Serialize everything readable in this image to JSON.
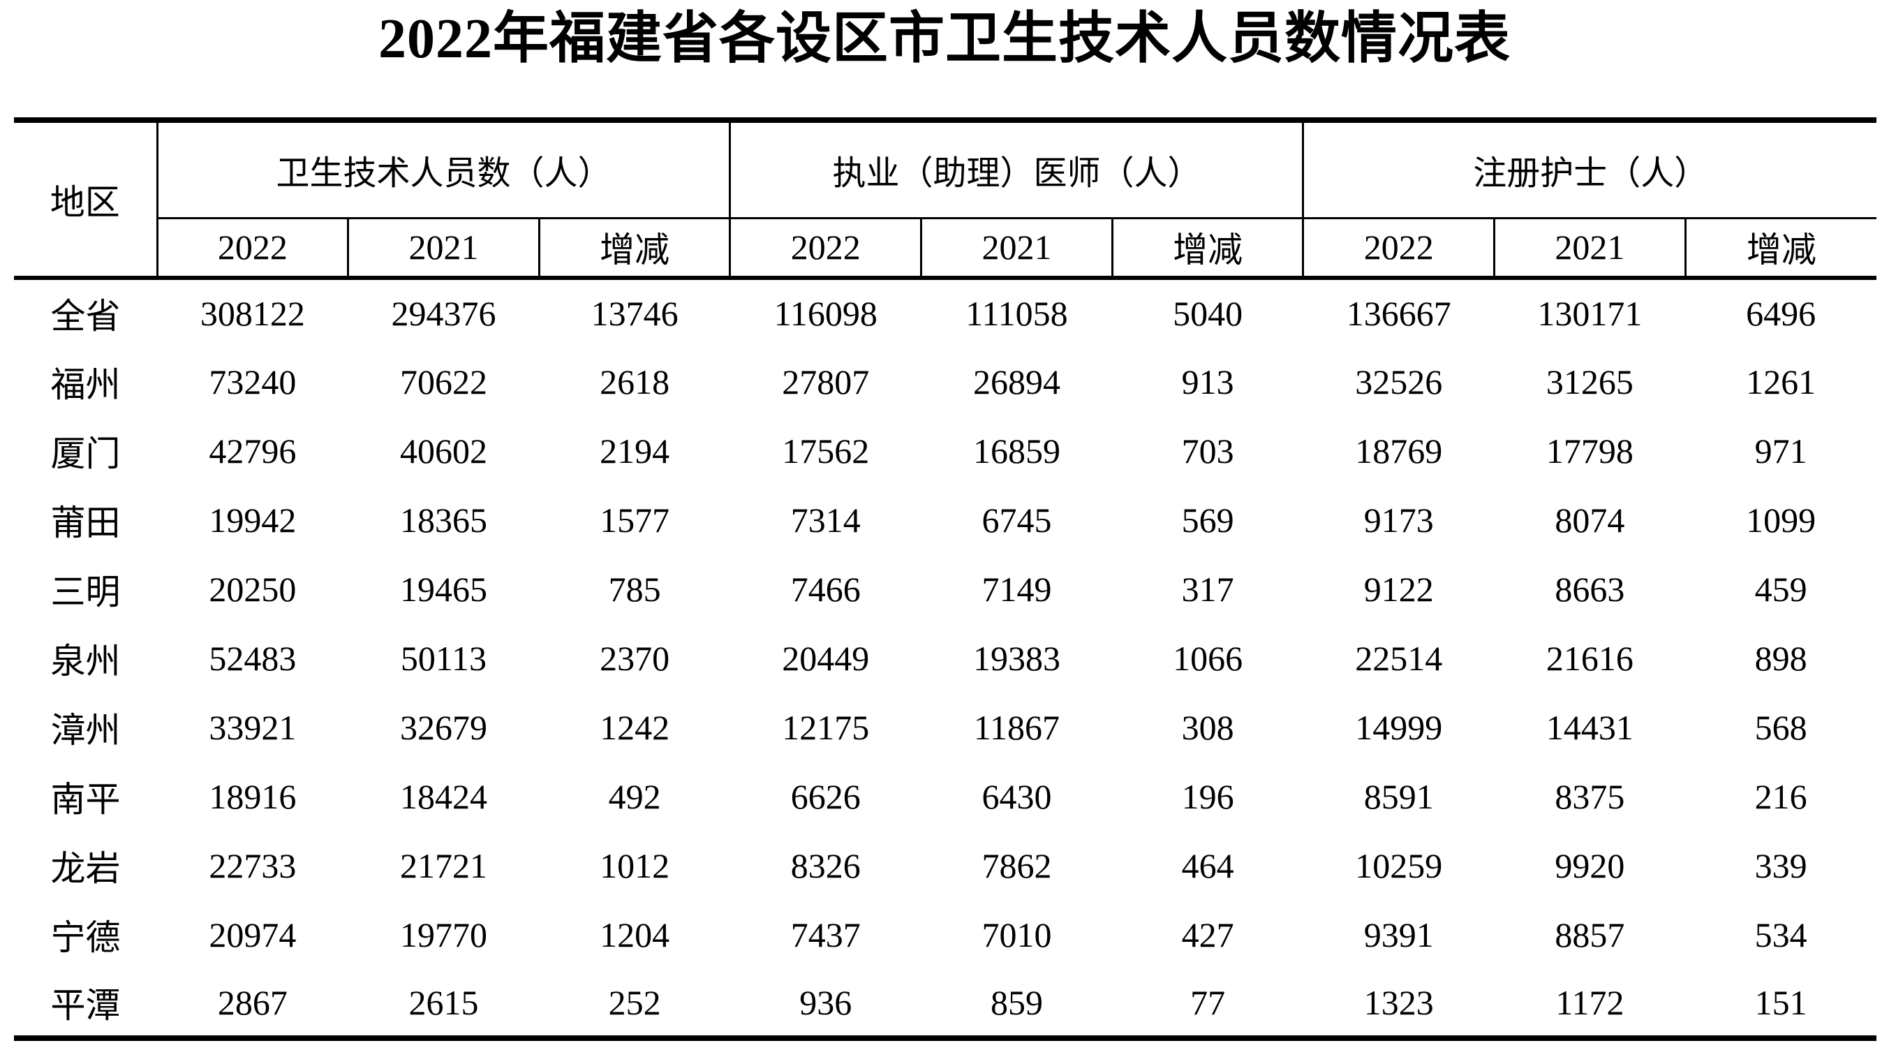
{
  "title": "2022年福建省各设区市卫生技术人员数情况表",
  "colors": {
    "text": "#000000",
    "background": "#ffffff",
    "border": "#000000"
  },
  "table": {
    "region_header": "地区",
    "groups": [
      {
        "label": "卫生技术人员数（人）",
        "sub": [
          "2022",
          "2021",
          "增减"
        ]
      },
      {
        "label": "执业（助理）医师（人）",
        "sub": [
          "2022",
          "2021",
          "增减"
        ]
      },
      {
        "label": "注册护士（人）",
        "sub": [
          "2022",
          "2021",
          "增减"
        ]
      }
    ],
    "rows": [
      {
        "region": "全省",
        "bold": true,
        "values": [
          308122,
          294376,
          13746,
          116098,
          111058,
          5040,
          136667,
          130171,
          6496
        ]
      },
      {
        "region": "福州",
        "bold": false,
        "values": [
          73240,
          70622,
          2618,
          27807,
          26894,
          913,
          32526,
          31265,
          1261
        ]
      },
      {
        "region": "厦门",
        "bold": false,
        "values": [
          42796,
          40602,
          2194,
          17562,
          16859,
          703,
          18769,
          17798,
          971
        ]
      },
      {
        "region": "莆田",
        "bold": false,
        "values": [
          19942,
          18365,
          1577,
          7314,
          6745,
          569,
          9173,
          8074,
          1099
        ]
      },
      {
        "region": "三明",
        "bold": false,
        "values": [
          20250,
          19465,
          785,
          7466,
          7149,
          317,
          9122,
          8663,
          459
        ]
      },
      {
        "region": "泉州",
        "bold": false,
        "values": [
          52483,
          50113,
          2370,
          20449,
          19383,
          1066,
          22514,
          21616,
          898
        ]
      },
      {
        "region": "漳州",
        "bold": false,
        "values": [
          33921,
          32679,
          1242,
          12175,
          11867,
          308,
          14999,
          14431,
          568
        ]
      },
      {
        "region": "南平",
        "bold": false,
        "values": [
          18916,
          18424,
          492,
          6626,
          6430,
          196,
          8591,
          8375,
          216
        ]
      },
      {
        "region": "龙岩",
        "bold": false,
        "values": [
          22733,
          21721,
          1012,
          8326,
          7862,
          464,
          10259,
          9920,
          339
        ]
      },
      {
        "region": "宁德",
        "bold": false,
        "values": [
          20974,
          19770,
          1204,
          7437,
          7010,
          427,
          9391,
          8857,
          534
        ]
      },
      {
        "region": "平潭",
        "bold": false,
        "values": [
          2867,
          2615,
          252,
          936,
          859,
          77,
          1323,
          1172,
          151
        ]
      }
    ]
  }
}
